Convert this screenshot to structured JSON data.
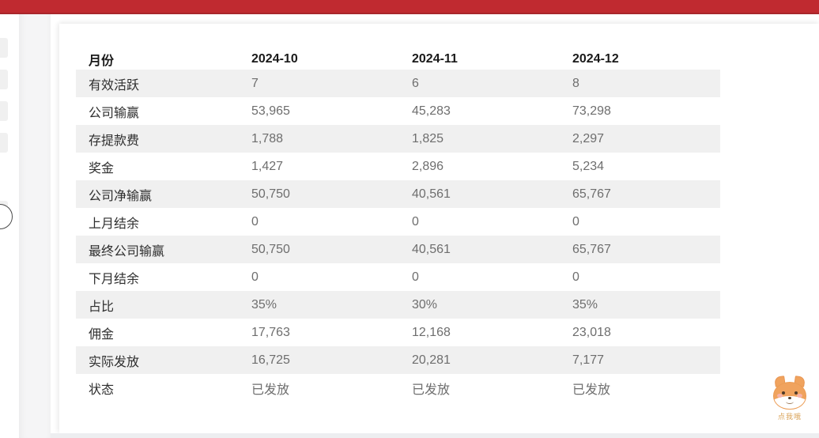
{
  "topbar": {
    "color": "#c02a30"
  },
  "table": {
    "header": [
      "月份",
      "2024-10",
      "2024-11",
      "2024-12"
    ],
    "rows": [
      {
        "label": "有效活跃",
        "values": [
          "7",
          "6",
          "8"
        ]
      },
      {
        "label": "公司输赢",
        "values": [
          "53,965",
          "45,283",
          "73,298"
        ]
      },
      {
        "label": "存提款费",
        "values": [
          "1,788",
          "1,825",
          "2,297"
        ]
      },
      {
        "label": "奖金",
        "values": [
          "1,427",
          "2,896",
          "5,234"
        ]
      },
      {
        "label": "公司净输赢",
        "values": [
          "50,750",
          "40,561",
          "65,767"
        ]
      },
      {
        "label": "上月结余",
        "values": [
          "0",
          "0",
          "0"
        ]
      },
      {
        "label": "最终公司输赢",
        "values": [
          "50,750",
          "40,561",
          "65,767"
        ]
      },
      {
        "label": "下月结余",
        "values": [
          "0",
          "0",
          "0"
        ]
      },
      {
        "label": "占比",
        "values": [
          "35%",
          "30%",
          "35%"
        ]
      },
      {
        "label": "佣金",
        "values": [
          "17,763",
          "12,168",
          "23,018"
        ]
      },
      {
        "label": "实际发放",
        "values": [
          "16,725",
          "20,281",
          "7,177"
        ]
      },
      {
        "label": "状态",
        "values": [
          "已发放",
          "已发放",
          "已发放"
        ]
      }
    ],
    "stripe_color": "#f0f0f0"
  },
  "mascot": {
    "caption": "点我哦"
  }
}
